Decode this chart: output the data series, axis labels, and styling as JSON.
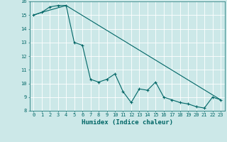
{
  "xlabel": "Humidex (Indice chaleur)",
  "ylabel": "",
  "bg_color": "#cce8e8",
  "line_color": "#006666",
  "grid_color": "#ffffff",
  "ylim": [
    8,
    16
  ],
  "xlim": [
    -0.5,
    23.5
  ],
  "yticks": [
    8,
    9,
    10,
    11,
    12,
    13,
    14,
    15,
    16
  ],
  "xticks": [
    0,
    1,
    2,
    3,
    4,
    5,
    6,
    7,
    8,
    9,
    10,
    11,
    12,
    13,
    14,
    15,
    16,
    17,
    18,
    19,
    20,
    21,
    22,
    23
  ],
  "line1_x": [
    0,
    1,
    2,
    3,
    4,
    5,
    6,
    7,
    8,
    9,
    10,
    11,
    12,
    13,
    14,
    15,
    16,
    17,
    18,
    19,
    20,
    21,
    22,
    23
  ],
  "line1_y": [
    15.0,
    15.2,
    15.6,
    15.7,
    15.7,
    13.0,
    12.8,
    10.3,
    10.1,
    10.3,
    10.7,
    9.4,
    8.6,
    9.6,
    9.5,
    10.1,
    9.0,
    8.8,
    8.6,
    8.5,
    8.3,
    8.2,
    9.0,
    8.8
  ],
  "line2_x": [
    0,
    1,
    4,
    23
  ],
  "line2_y": [
    15.0,
    15.2,
    15.7,
    8.8
  ],
  "xlabel_fontsize": 6.5,
  "tick_fontsize": 5.0
}
